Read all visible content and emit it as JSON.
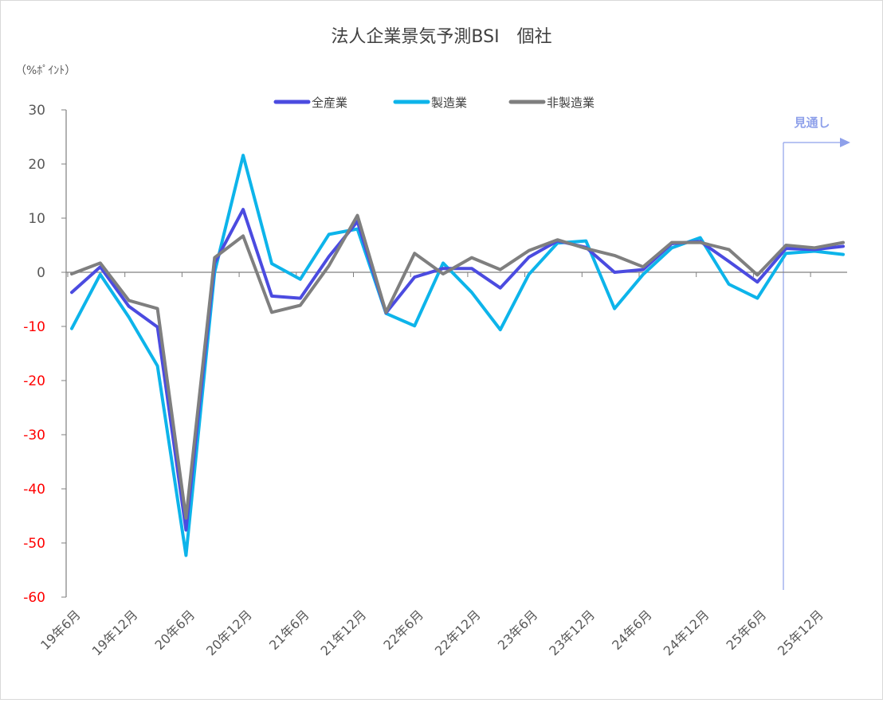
{
  "chart_data": {
    "type": "line",
    "title": "法人企業景気予測BSI　個社",
    "unit_label": "（%ﾎﾟｲﾝﾄ）",
    "ylim": [
      -60,
      30
    ],
    "yticks": [
      30,
      20,
      10,
      0,
      -10,
      -20,
      -30,
      -40,
      -50,
      -60
    ],
    "ytick_labels": [
      "30",
      "20",
      "10",
      "0",
      "-10",
      "-20",
      "-30",
      "-40",
      "-50",
      "-60"
    ],
    "x": [
      "19年6月",
      "19年9月",
      "19年12月",
      "20年3月",
      "20年6月",
      "20年9月",
      "20年12月",
      "21年3月",
      "21年6月",
      "21年9月",
      "21年12月",
      "22年3月",
      "22年6月",
      "22年9月",
      "22年12月",
      "23年3月",
      "23年6月",
      "23年9月",
      "23年12月",
      "24年3月",
      "24年6月",
      "24年9月",
      "24年12月",
      "25年3月",
      "25年6月",
      "25年9月",
      "25年12月",
      "26年3月"
    ],
    "xtick_labels": [
      "19年6月",
      "19年12月",
      "20年6月",
      "20年12月",
      "21年6月",
      "21年12月",
      "22年6月",
      "22年12月",
      "23年6月",
      "23年12月",
      "24年6月",
      "24年12月",
      "25年6月",
      "25年12月"
    ],
    "grid": false,
    "legend_position": "top",
    "series": [
      {
        "name": "全産業",
        "color": "#4b4be0",
        "values": [
          -3.7,
          1.0,
          -6.3,
          -10.1,
          -47.6,
          1.7,
          11.6,
          -4.4,
          -4.8,
          2.9,
          9.4,
          -7.5,
          -0.9,
          0.7,
          0.7,
          -2.9,
          2.8,
          5.8,
          4.6,
          0.0,
          0.5,
          5.3,
          5.7,
          2.0,
          -1.8,
          4.4,
          4.2,
          4.8
        ]
      },
      {
        "name": "製造業",
        "color": "#0db4ea",
        "values": [
          -10.4,
          -0.4,
          -8.3,
          -17.3,
          -52.3,
          0.0,
          21.6,
          1.6,
          -1.3,
          7.0,
          8.0,
          -7.6,
          -9.9,
          1.7,
          -3.7,
          -10.6,
          -0.4,
          5.4,
          5.8,
          -6.7,
          -0.4,
          4.5,
          6.4,
          -2.2,
          -4.8,
          3.5,
          3.9,
          3.3
        ]
      },
      {
        "name": "非製造業",
        "color": "#7f7f7f",
        "values": [
          -0.3,
          1.7,
          -5.2,
          -6.7,
          -45.4,
          2.7,
          6.7,
          -7.4,
          -6.1,
          1.2,
          10.5,
          -7.4,
          3.5,
          -0.3,
          2.7,
          0.5,
          4.0,
          6.0,
          4.4,
          3.1,
          1.0,
          5.5,
          5.5,
          4.2,
          -0.5,
          5.0,
          4.5,
          5.5
        ]
      }
    ],
    "forecast": {
      "label": "見通し",
      "color": "#8ea0ea"
    }
  },
  "axis_colors": {
    "positive": "#595959",
    "negative": "#ff0000",
    "axis": "#808080"
  }
}
